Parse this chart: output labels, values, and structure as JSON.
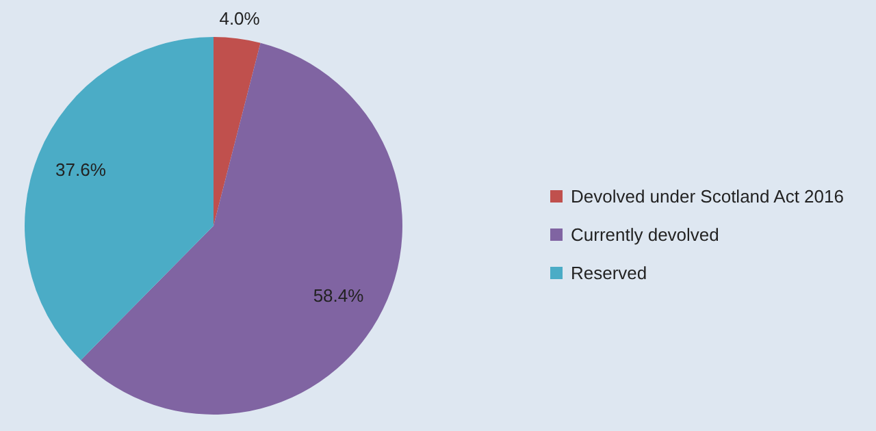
{
  "chart_data": {
    "type": "pie",
    "categories": [
      "Devolved under Scotland Act 2016",
      "Currently devolved",
      "Reserved"
    ],
    "values": [
      4.0,
      58.4,
      37.6
    ],
    "colors": [
      "#c0504d",
      "#8064a2",
      "#4bacc6"
    ],
    "value_labels": [
      "4.0%",
      "58.4%",
      "37.6%"
    ],
    "legend": "right"
  }
}
